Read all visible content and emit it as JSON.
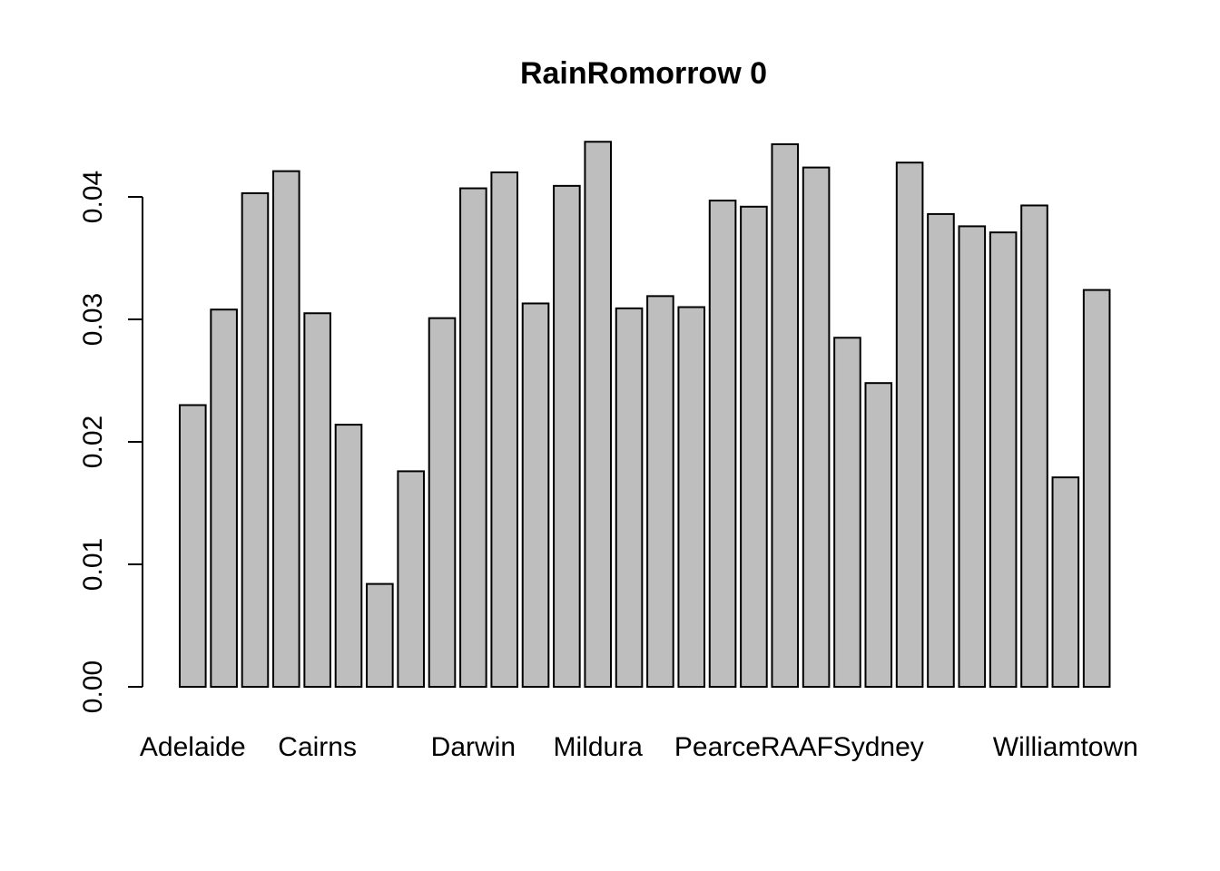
{
  "chart_data": {
    "type": "bar",
    "title": "RainRomorrow 0",
    "xlabel": "",
    "ylabel": "",
    "ylim": [
      0,
      0.045
    ],
    "y_ticks": [
      "0.00",
      "0.01",
      "0.02",
      "0.03",
      "0.04"
    ],
    "y_tick_values": [
      0,
      0.01,
      0.02,
      0.03,
      0.04
    ],
    "x_tick_labels": [
      "Adelaide",
      "Cairns",
      "Darwin",
      "Mildura",
      "PearceRAAF",
      "Sydney",
      "Williamtown"
    ],
    "x_tick_bar_index": [
      0,
      4,
      9,
      13,
      18,
      22,
      28
    ],
    "values": [
      0.023,
      0.0308,
      0.0403,
      0.0421,
      0.0305,
      0.0214,
      0.0084,
      0.0176,
      0.0301,
      0.0407,
      0.042,
      0.0313,
      0.0409,
      0.0445,
      0.0309,
      0.0319,
      0.031,
      0.0397,
      0.0392,
      0.0443,
      0.0424,
      0.0285,
      0.0248,
      0.0428,
      0.0386,
      0.0376,
      0.0371,
      0.0393,
      0.0171,
      0.0324
    ],
    "grid": false,
    "bar_color": "#bebebe",
    "border_color": "#000000"
  }
}
